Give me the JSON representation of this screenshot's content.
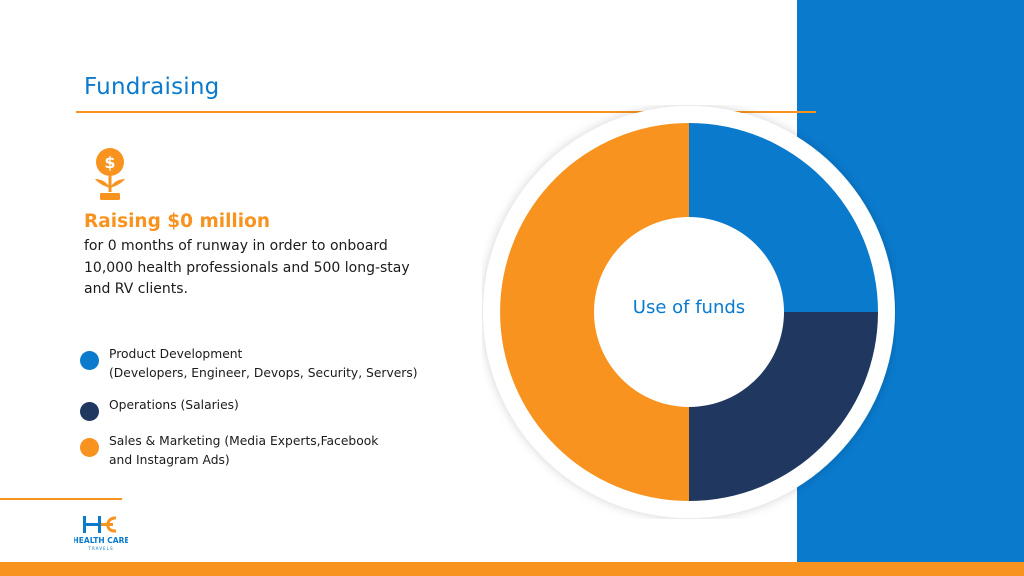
{
  "slide": {
    "title": "Fundraising",
    "headline": "Raising $0 million",
    "subtext": "for 0 months of runway in order to onboard 10,000 health professionals and 500 long-stay and RV clients.",
    "icon": "money-plant-icon"
  },
  "legend": [
    {
      "label": "Product Development\n(Developers, Engineer, Devops, Security, Servers)",
      "color": "#0a7acd"
    },
    {
      "label": "Operations (Salaries)",
      "color": "#20375f"
    },
    {
      "label": "Sales & Marketing (Media Experts,Facebook\nand Instagram Ads)",
      "color": "#f7931e"
    }
  ],
  "logo": {
    "mark": "HC",
    "name": "HEALTH CARE",
    "tagline": "TRAVELS"
  },
  "colors": {
    "accent_blue": "#0a7acd",
    "navy": "#20375f",
    "orange": "#f7931e"
  },
  "chart_data": {
    "type": "pie",
    "center_label": "Use of funds",
    "categories": [
      "Product Development",
      "Operations (Salaries)",
      "Sales & Marketing"
    ],
    "values": [
      25,
      25,
      50
    ],
    "colors": [
      "#0a7acd",
      "#20375f",
      "#f7931e"
    ]
  }
}
